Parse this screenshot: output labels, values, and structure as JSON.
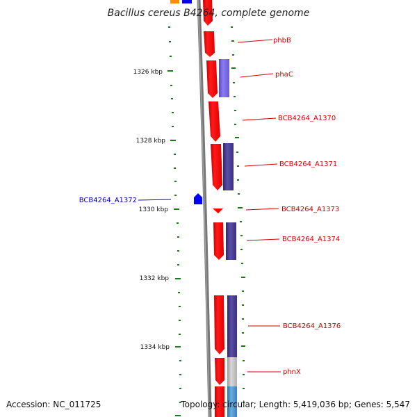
{
  "title": "Bacillus cereus B4264, complete genome",
  "footer": {
    "accession": "Accession: NC_011725",
    "topology": "Topology: circular; Length: 5,419,036 bp; Genes: 5,547"
  },
  "kbp_labels": [
    "1326 kbp",
    "1328 kbp",
    "1330 kbp",
    "1332 kbp",
    "1334 kbp"
  ],
  "gene_labels": [
    {
      "text": "phbB",
      "color": "#cc0000"
    },
    {
      "text": "phaC",
      "color": "#cc0000"
    },
    {
      "text": "BCB4264_A1370",
      "color": "#cc0000"
    },
    {
      "text": "BCB4264_A1371",
      "color": "#cc0000"
    },
    {
      "text": "BCB4264_A1373",
      "color": "#cc0000"
    },
    {
      "text": "BCB4264_A1374",
      "color": "#cc0000"
    },
    {
      "text": "BCB4264_A1376",
      "color": "#cc0000"
    },
    {
      "text": "phnX",
      "color": "#cc0000"
    },
    {
      "text": "BCB4264_A1372",
      "color": "#0000aa"
    }
  ],
  "colors": {
    "backbone": "#7a7a7a",
    "tick": "#1a7a1a",
    "gene_forward": "#ff0000",
    "gene_reverse": "#0000ff",
    "feature_blue": "#4a3d8f",
    "feature_violet": "#7060d8",
    "feature_grey": "#bbbbbb",
    "feature_lightblue": "#4d94cc",
    "feature_orange": "#ff8c00"
  }
}
